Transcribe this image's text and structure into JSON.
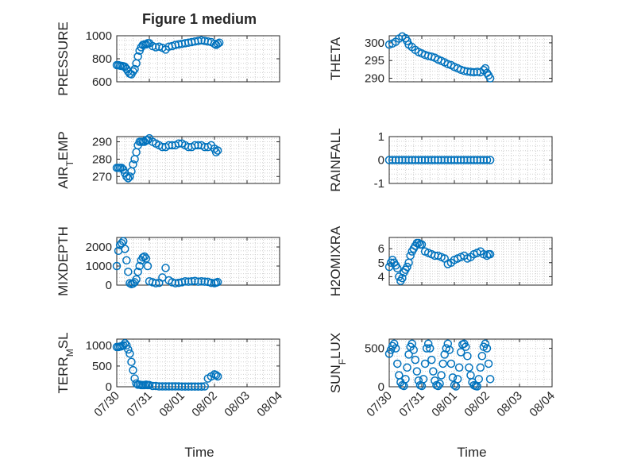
{
  "chart_data": {
    "title": "Figure 1 medium",
    "marker_color": "#0072bd",
    "x_ticks": [
      "07/30",
      "07/31",
      "08/01",
      "08/02",
      "08/03",
      "08/04"
    ],
    "xlabel": "Time",
    "panels": [
      {
        "id": "pressure",
        "type": "scatter",
        "ylabel": "PRESSURE",
        "ylabel_sub": "",
        "ylabel_tail": "",
        "ylim": [
          600,
          1000
        ],
        "yticks": [
          600,
          800,
          1000
        ],
        "ytick_labels": [
          "600",
          "800",
          "1000"
        ],
        "x": [
          0.0,
          0.05,
          0.1,
          0.15,
          0.2,
          0.25,
          0.3,
          0.35,
          0.4,
          0.45,
          0.5,
          0.55,
          0.6,
          0.65,
          0.7,
          0.75,
          0.8,
          0.85,
          0.9,
          0.95,
          1.0,
          1.1,
          1.2,
          1.3,
          1.4,
          1.5,
          1.6,
          1.7,
          1.8,
          1.9,
          2.0,
          2.1,
          2.2,
          2.3,
          2.4,
          2.5,
          2.6,
          2.7,
          2.8,
          2.9,
          3.0,
          3.05,
          3.1,
          3.15
        ],
        "y": [
          745,
          745,
          740,
          738,
          735,
          730,
          712,
          690,
          670,
          665,
          690,
          710,
          760,
          820,
          870,
          900,
          920,
          925,
          925,
          935,
          935,
          910,
          900,
          905,
          895,
          880,
          905,
          910,
          920,
          925,
          930,
          935,
          940,
          945,
          950,
          955,
          960,
          955,
          950,
          945,
          930,
          920,
          930,
          940
        ]
      },
      {
        "id": "theta",
        "type": "scatter",
        "ylabel": "THETA",
        "ylabel_sub": "",
        "ylabel_tail": "",
        "ylim": [
          289,
          302
        ],
        "yticks": [
          290,
          295,
          300
        ],
        "ytick_labels": [
          "290",
          "295",
          "300"
        ],
        "x": [
          0.0,
          0.1,
          0.2,
          0.3,
          0.4,
          0.5,
          0.55,
          0.6,
          0.7,
          0.8,
          0.9,
          1.0,
          1.1,
          1.2,
          1.3,
          1.4,
          1.5,
          1.6,
          1.7,
          1.8,
          1.9,
          2.0,
          2.1,
          2.2,
          2.3,
          2.4,
          2.5,
          2.6,
          2.7,
          2.8,
          2.9,
          2.95,
          3.0,
          3.05,
          3.1
        ],
        "y": [
          299.5,
          299.8,
          300.3,
          301.2,
          301.8,
          301.3,
          300.5,
          299.5,
          298.8,
          298.0,
          297.4,
          297.0,
          296.6,
          296.3,
          296.1,
          295.8,
          295.3,
          294.9,
          294.5,
          294.0,
          293.7,
          293.2,
          292.8,
          292.4,
          292.1,
          291.9,
          291.8,
          291.7,
          291.8,
          291.7,
          292.3,
          292.8,
          291.5,
          290.8,
          290.0
        ]
      },
      {
        "id": "air_temp",
        "type": "scatter",
        "ylabel": "AIR",
        "ylabel_sub": "T",
        "ylabel_tail": "EMP",
        "ylim": [
          266,
          293
        ],
        "yticks": [
          270,
          280,
          290
        ],
        "ytick_labels": [
          "270",
          "280",
          "290"
        ],
        "x": [
          0.0,
          0.05,
          0.1,
          0.15,
          0.2,
          0.25,
          0.3,
          0.35,
          0.4,
          0.45,
          0.5,
          0.55,
          0.6,
          0.65,
          0.7,
          0.75,
          0.8,
          0.85,
          0.9,
          0.95,
          1.0,
          1.1,
          1.2,
          1.3,
          1.4,
          1.5,
          1.6,
          1.7,
          1.8,
          1.9,
          2.0,
          2.1,
          2.2,
          2.3,
          2.4,
          2.5,
          2.6,
          2.7,
          2.8,
          2.9,
          3.0,
          3.05,
          3.1
        ],
        "y": [
          275,
          275,
          275,
          275,
          274,
          272,
          270,
          269,
          270,
          273,
          277,
          280,
          284,
          288,
          290,
          290,
          290,
          290,
          291,
          291,
          292,
          290,
          289,
          288,
          287,
          287,
          288,
          288,
          288,
          289,
          289,
          288,
          287,
          287,
          288,
          288,
          288,
          287,
          287,
          288,
          286,
          284,
          285
        ]
      },
      {
        "id": "rainfall",
        "type": "scatter",
        "ylabel": "RAINFALL",
        "ylabel_sub": "",
        "ylabel_tail": "",
        "ylim": [
          -1,
          1
        ],
        "yticks": [
          -1,
          0,
          1
        ],
        "ytick_labels": [
          "-1",
          "0",
          "1"
        ],
        "x": [
          0.0,
          0.1,
          0.2,
          0.3,
          0.4,
          0.5,
          0.6,
          0.7,
          0.8,
          0.9,
          1.0,
          1.1,
          1.2,
          1.3,
          1.4,
          1.5,
          1.6,
          1.7,
          1.8,
          1.9,
          2.0,
          2.1,
          2.2,
          2.3,
          2.4,
          2.5,
          2.6,
          2.7,
          2.8,
          2.9,
          3.0,
          3.1
        ],
        "y": [
          0,
          0,
          0,
          0,
          0,
          0,
          0,
          0,
          0,
          0,
          0,
          0,
          0,
          0,
          0,
          0,
          0,
          0,
          0,
          0,
          0,
          0,
          0,
          0,
          0,
          0,
          0,
          0,
          0,
          0,
          0,
          0
        ]
      },
      {
        "id": "mixdepth",
        "type": "scatter",
        "ylabel": "MIXDEPTH",
        "ylabel_sub": "",
        "ylabel_tail": "",
        "ylim": [
          0,
          2500
        ],
        "yticks": [
          0,
          1000,
          2000
        ],
        "ytick_labels": [
          "0",
          "1000",
          "2000"
        ],
        "x": [
          0.0,
          0.05,
          0.1,
          0.15,
          0.2,
          0.25,
          0.3,
          0.35,
          0.4,
          0.45,
          0.5,
          0.55,
          0.6,
          0.65,
          0.7,
          0.75,
          0.8,
          0.85,
          0.9,
          0.95,
          1.0,
          1.1,
          1.2,
          1.3,
          1.4,
          1.5,
          1.6,
          1.7,
          1.8,
          1.9,
          2.0,
          2.1,
          2.2,
          2.3,
          2.4,
          2.5,
          2.6,
          2.7,
          2.8,
          2.9,
          3.0,
          3.05,
          3.1
        ],
        "y": [
          1000,
          1800,
          2100,
          2200,
          2300,
          1900,
          1300,
          700,
          100,
          50,
          80,
          150,
          300,
          700,
          1000,
          1300,
          1450,
          1500,
          1400,
          1000,
          200,
          150,
          100,
          120,
          400,
          900,
          250,
          150,
          100,
          120,
          150,
          200,
          180,
          200,
          220,
          180,
          200,
          180,
          170,
          120,
          100,
          130,
          160
        ]
      },
      {
        "id": "h2omixra",
        "type": "scatter",
        "ylabel": "H2OMIXRA",
        "ylabel_sub": "",
        "ylabel_tail": "",
        "ylim": [
          3.4,
          6.8
        ],
        "yticks": [
          4,
          5,
          6
        ],
        "ytick_labels": [
          "4",
          "5",
          "6"
        ],
        "x": [
          0.0,
          0.05,
          0.1,
          0.15,
          0.2,
          0.25,
          0.3,
          0.35,
          0.4,
          0.45,
          0.5,
          0.55,
          0.6,
          0.65,
          0.7,
          0.75,
          0.8,
          0.85,
          0.9,
          0.95,
          1.0,
          1.1,
          1.2,
          1.3,
          1.4,
          1.5,
          1.6,
          1.7,
          1.8,
          1.9,
          2.0,
          2.1,
          2.2,
          2.3,
          2.4,
          2.5,
          2.6,
          2.7,
          2.8,
          2.9,
          3.0,
          3.05,
          3.1
        ],
        "y": [
          4.7,
          5.0,
          5.2,
          5.0,
          4.8,
          4.6,
          4.0,
          3.7,
          3.9,
          4.3,
          4.5,
          4.7,
          5.0,
          5.5,
          5.8,
          6.0,
          6.2,
          6.4,
          6.4,
          6.3,
          6.3,
          5.8,
          5.7,
          5.6,
          5.5,
          5.5,
          5.4,
          5.3,
          4.9,
          5.0,
          5.2,
          5.3,
          5.4,
          5.5,
          5.3,
          5.4,
          5.6,
          5.7,
          5.8,
          5.6,
          5.5,
          5.6,
          5.6
        ]
      },
      {
        "id": "terr_msl",
        "type": "scatter",
        "ylabel": "TERR",
        "ylabel_sub": "M",
        "ylabel_tail": "SL",
        "ylim": [
          0,
          1150
        ],
        "yticks": [
          0,
          500,
          1000
        ],
        "ytick_labels": [
          "0",
          "500",
          "1000"
        ],
        "x": [
          0.0,
          0.05,
          0.1,
          0.15,
          0.2,
          0.25,
          0.3,
          0.35,
          0.4,
          0.45,
          0.5,
          0.55,
          0.6,
          0.65,
          0.7,
          0.75,
          0.8,
          0.85,
          0.9,
          0.95,
          1.0,
          1.1,
          1.2,
          1.3,
          1.4,
          1.5,
          1.6,
          1.7,
          1.8,
          1.9,
          2.0,
          2.1,
          2.2,
          2.3,
          2.4,
          2.5,
          2.6,
          2.7,
          2.8,
          2.9,
          3.0,
          3.05,
          3.1
        ],
        "y": [
          960,
          960,
          970,
          980,
          1000,
          1050,
          1000,
          900,
          800,
          600,
          400,
          200,
          80,
          50,
          50,
          40,
          40,
          40,
          50,
          40,
          40,
          20,
          20,
          10,
          10,
          10,
          10,
          10,
          10,
          10,
          5,
          5,
          5,
          5,
          5,
          5,
          5,
          10,
          200,
          250,
          300,
          280,
          250
        ]
      },
      {
        "id": "sun_flux",
        "type": "scatter",
        "ylabel": "SUN",
        "ylabel_sub": "F",
        "ylabel_tail": "LUX",
        "ylim": [
          0,
          620
        ],
        "yticks": [
          0,
          500
        ],
        "ytick_labels": [
          "0",
          "500"
        ],
        "x": [
          0.0,
          0.05,
          0.1,
          0.15,
          0.2,
          0.25,
          0.3,
          0.35,
          0.4,
          0.45,
          0.5,
          0.55,
          0.6,
          0.65,
          0.7,
          0.75,
          0.8,
          0.85,
          0.9,
          0.95,
          1.0,
          1.05,
          1.1,
          1.15,
          1.2,
          1.25,
          1.3,
          1.35,
          1.4,
          1.45,
          1.5,
          1.55,
          1.6,
          1.65,
          1.7,
          1.75,
          1.8,
          1.85,
          1.9,
          1.95,
          2.0,
          2.05,
          2.1,
          2.15,
          2.2,
          2.25,
          2.3,
          2.35,
          2.4,
          2.45,
          2.5,
          2.55,
          2.6,
          2.65,
          2.7,
          2.75,
          2.8,
          2.85,
          2.9,
          2.95,
          3.0,
          3.05,
          3.1
        ],
        "y": [
          430,
          480,
          530,
          560,
          500,
          300,
          150,
          60,
          20,
          10,
          100,
          250,
          420,
          520,
          560,
          480,
          350,
          200,
          80,
          20,
          10,
          100,
          300,
          500,
          560,
          500,
          350,
          200,
          80,
          20,
          10,
          40,
          150,
          300,
          420,
          500,
          560,
          480,
          300,
          120,
          20,
          5,
          100,
          250,
          450,
          550,
          560,
          520,
          400,
          250,
          150,
          60,
          20,
          10,
          5,
          100,
          250,
          400,
          520,
          560,
          500,
          300,
          100
        ]
      }
    ]
  }
}
